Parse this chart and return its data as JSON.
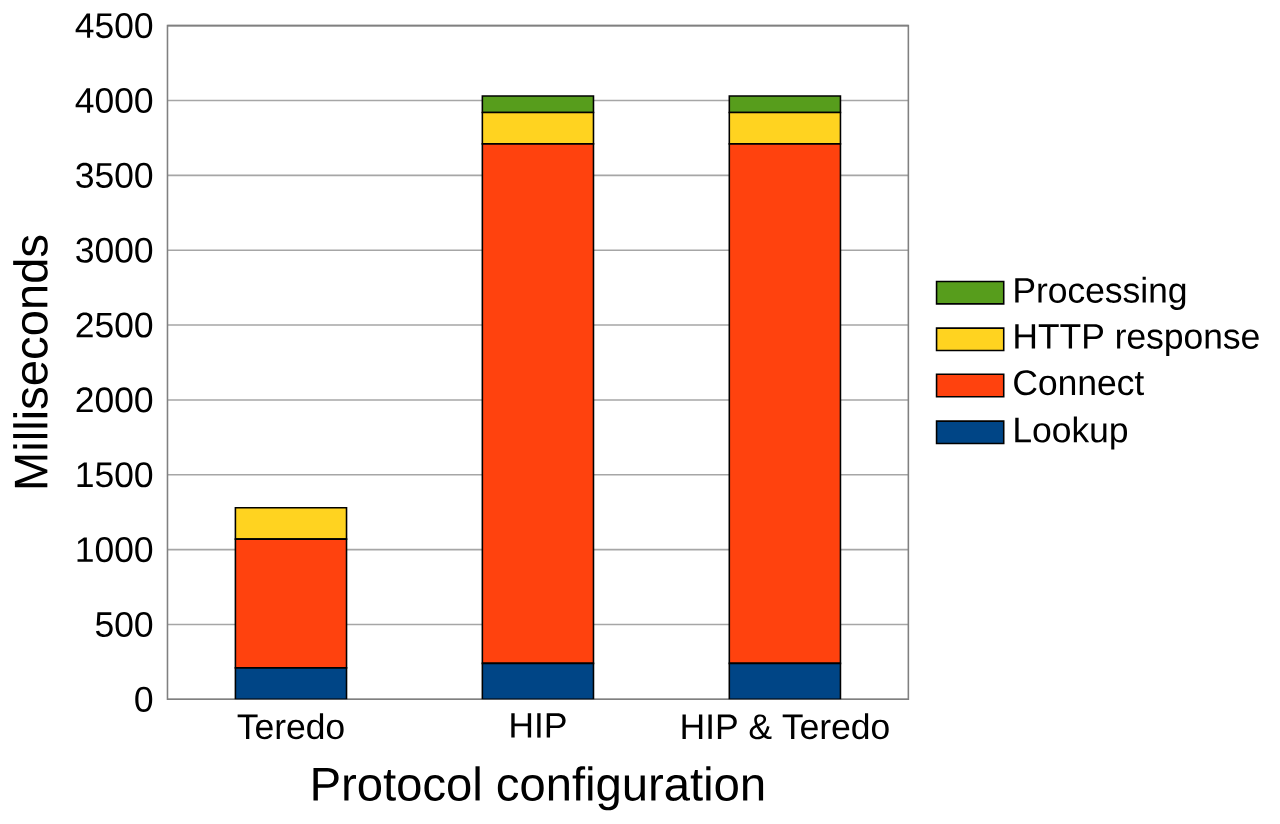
{
  "chart_data": {
    "type": "bar",
    "stacked": true,
    "xlabel": "Protocol configuration",
    "ylabel": "Milliseconds",
    "categories": [
      "Teredo",
      "HIP",
      "HIP & Teredo"
    ],
    "series": [
      {
        "name": "Lookup",
        "color": "#004586",
        "values": [
          210,
          240,
          240
        ]
      },
      {
        "name": "Connect",
        "color": "#ff420e",
        "values": [
          860,
          3470,
          3470
        ]
      },
      {
        "name": "HTTP response",
        "color": "#ffd320",
        "values": [
          210,
          210,
          210
        ]
      },
      {
        "name": "Processing",
        "color": "#579d1c",
        "values": [
          0,
          110,
          110
        ]
      }
    ],
    "ylim": [
      0,
      4500
    ],
    "yticks": [
      0,
      500,
      1000,
      1500,
      2000,
      2500,
      3000,
      3500,
      4000,
      4500
    ],
    "grid": "y",
    "legend": "right"
  }
}
